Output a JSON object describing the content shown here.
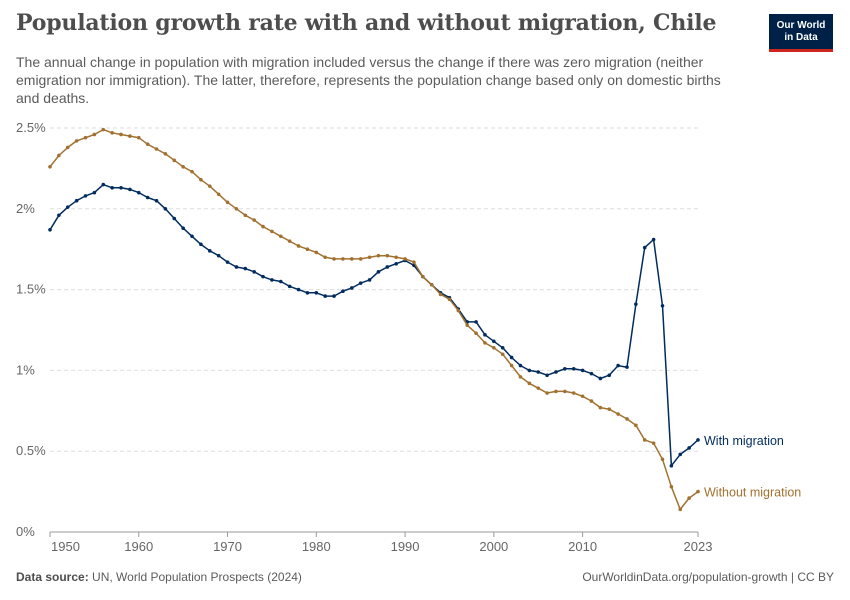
{
  "header": {
    "title": "Population growth rate with and without migration, Chile",
    "subtitle": "The annual change in population with migration included versus the change if there was zero migration (neither emigration nor immigration). The latter, therefore, represents the population change based only on domestic births and deaths.",
    "logo_text": "Our World in Data"
  },
  "footer": {
    "source_label": "Data source:",
    "source_text": "UN, World Population Prospects (2024)",
    "url": "OurWorldinData.org/population-growth | CC BY"
  },
  "colors": {
    "with_migration": "#002c5f",
    "without_migration": "#a2712f",
    "grid": "#dddddd",
    "axis": "#999999",
    "tick_text": "#666666",
    "logo_bg": "#002147",
    "logo_accent": "#ce261e"
  },
  "chart_data": {
    "type": "line",
    "title": "Population growth rate with and without migration, Chile",
    "xlabel": "",
    "ylabel": "",
    "xlim": [
      1950,
      2023
    ],
    "ylim": [
      0,
      2.5
    ],
    "y_unit": "%",
    "y_ticks": [
      0,
      0.5,
      1,
      1.5,
      2,
      2.5
    ],
    "y_tick_labels": [
      "0%",
      "0.5%",
      "1%",
      "1.5%",
      "2%",
      "2.5%"
    ],
    "x_ticks": [
      1950,
      1960,
      1970,
      1980,
      1990,
      2000,
      2010,
      2023
    ],
    "x_tick_labels": [
      "1950",
      "1960",
      "1970",
      "1980",
      "1990",
      "2000",
      "2010",
      "2023"
    ],
    "grid": true,
    "legend": "inline labels at line ends (right)",
    "x": [
      1950,
      1951,
      1952,
      1953,
      1954,
      1955,
      1956,
      1957,
      1958,
      1959,
      1960,
      1961,
      1962,
      1963,
      1964,
      1965,
      1966,
      1967,
      1968,
      1969,
      1970,
      1971,
      1972,
      1973,
      1974,
      1975,
      1976,
      1977,
      1978,
      1979,
      1980,
      1981,
      1982,
      1983,
      1984,
      1985,
      1986,
      1987,
      1988,
      1989,
      1990,
      1991,
      1992,
      1993,
      1994,
      1995,
      1996,
      1997,
      1998,
      1999,
      2000,
      2001,
      2002,
      2003,
      2004,
      2005,
      2006,
      2007,
      2008,
      2009,
      2010,
      2011,
      2012,
      2013,
      2014,
      2015,
      2016,
      2017,
      2018,
      2019,
      2020,
      2021,
      2022,
      2023
    ],
    "series": [
      {
        "name": "With migration",
        "color": "#002c5f",
        "values": [
          1.87,
          1.96,
          2.01,
          2.05,
          2.08,
          2.1,
          2.15,
          2.13,
          2.13,
          2.12,
          2.1,
          2.07,
          2.05,
          2.0,
          1.94,
          1.88,
          1.83,
          1.78,
          1.74,
          1.71,
          1.67,
          1.64,
          1.63,
          1.61,
          1.58,
          1.56,
          1.55,
          1.52,
          1.5,
          1.48,
          1.48,
          1.46,
          1.46,
          1.49,
          1.51,
          1.54,
          1.56,
          1.61,
          1.64,
          1.66,
          1.68,
          1.65,
          1.58,
          1.53,
          1.48,
          1.45,
          1.38,
          1.3,
          1.3,
          1.22,
          1.18,
          1.14,
          1.08,
          1.03,
          1.0,
          0.99,
          0.97,
          0.99,
          1.01,
          1.01,
          1.0,
          0.98,
          0.95,
          0.97,
          1.03,
          1.02,
          1.41,
          1.76,
          1.81,
          1.4,
          0.41,
          0.48,
          0.52,
          0.57
        ]
      },
      {
        "name": "Without migration",
        "color": "#a2712f",
        "values": [
          2.26,
          2.33,
          2.38,
          2.42,
          2.44,
          2.46,
          2.49,
          2.47,
          2.46,
          2.45,
          2.44,
          2.4,
          2.37,
          2.34,
          2.3,
          2.26,
          2.23,
          2.18,
          2.14,
          2.09,
          2.04,
          2.0,
          1.96,
          1.93,
          1.89,
          1.86,
          1.83,
          1.8,
          1.77,
          1.75,
          1.73,
          1.7,
          1.69,
          1.69,
          1.69,
          1.69,
          1.7,
          1.71,
          1.71,
          1.7,
          1.69,
          1.67,
          1.58,
          1.53,
          1.47,
          1.44,
          1.37,
          1.28,
          1.23,
          1.17,
          1.14,
          1.1,
          1.03,
          0.96,
          0.92,
          0.89,
          0.86,
          0.87,
          0.87,
          0.86,
          0.84,
          0.81,
          0.77,
          0.76,
          0.73,
          0.7,
          0.66,
          0.57,
          0.55,
          0.45,
          0.28,
          0.14,
          0.21,
          0.25
        ]
      }
    ]
  }
}
